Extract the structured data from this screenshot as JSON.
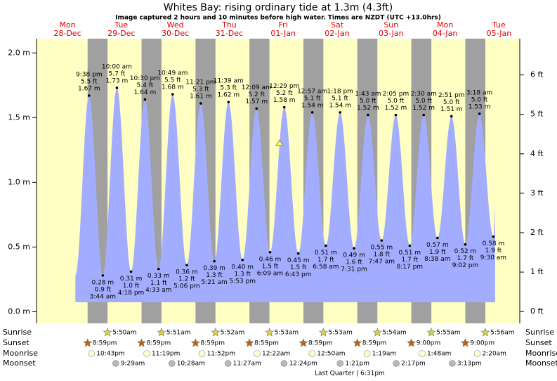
{
  "header": {
    "title": "Whites Bay: rising  ordinary tide at 1.3m (4.3ft)",
    "subtitle": "Image captured 2 hours and 10 minutes before high water. Times are NZDT (UTC +13.0hrs)"
  },
  "current_height_m": 1.3,
  "axes": {
    "ylim": [
      -0.09,
      2.11
    ],
    "yticks": [
      {
        "value": 0,
        "label": "0.0 m"
      },
      {
        "value": 0.5,
        "label": "0.5 m"
      },
      {
        "value": 1,
        "label": "1.0 m"
      },
      {
        "value": 1.5,
        "label": "1.5 m"
      },
      {
        "value": 2,
        "label": "2.0 m"
      }
    ],
    "y2lim": [
      -0.3,
      6.92
    ],
    "y2ticks": [
      {
        "value": 0,
        "label": "0 ft"
      },
      {
        "value": 1,
        "label": "1 ft"
      },
      {
        "value": 2,
        "label": "2 ft"
      },
      {
        "value": 3,
        "label": "3 ft"
      },
      {
        "value": 4,
        "label": "4 ft"
      },
      {
        "value": 5,
        "label": "5 ft"
      },
      {
        "value": 6,
        "label": "6 ft"
      }
    ]
  },
  "row_labels": {
    "sunrise": "Sunrise",
    "sunset": "Sunset",
    "moonrise": "Moonrise",
    "moonset": "Moonset"
  },
  "moon_phase": "Last Quarter | 6:31pm",
  "days": [
    {
      "weekday": "Mon",
      "date": "28-Dec",
      "sunrise": null,
      "sunset": "8:59pm",
      "moonrise": "10:43pm",
      "moonset": null,
      "tides": [
        {
          "time": "9:38 pm",
          "ft": "5.5 ft",
          "m": 1.67,
          "m_label": "1.67 m"
        }
      ]
    },
    {
      "weekday": "Tue",
      "date": "29-Dec",
      "sunrise": "5:50am",
      "sunset": "8:59pm",
      "moonrise": "11:19pm",
      "moonset": "9:29am",
      "tides": [
        {
          "time": "3:44 am",
          "ft": "0.9 ft",
          "m": 0.28,
          "m_label": "0.28 m"
        },
        {
          "time": "10:00 am",
          "ft": "5.7 ft",
          "m": 1.73,
          "m_label": "1.73 m"
        },
        {
          "time": "4:18 pm",
          "ft": "1.0 ft",
          "m": 0.31,
          "m_label": "0.31 m"
        },
        {
          "time": "10:30 pm",
          "ft": "5.4 ft",
          "m": 1.64,
          "m_label": "1.64 m"
        }
      ]
    },
    {
      "weekday": "Wed",
      "date": "30-Dec",
      "sunrise": "5:51am",
      "sunset": "8:59pm",
      "moonrise": "11:52pm",
      "moonset": "10:28am",
      "tides": [
        {
          "time": "4:33 am",
          "ft": "1.1 ft",
          "m": 0.33,
          "m_label": "0.33 m"
        },
        {
          "time": "10:49 am",
          "ft": "5.5 ft",
          "m": 1.68,
          "m_label": "1.68 m"
        },
        {
          "time": "5:06 pm",
          "ft": "1.2 ft",
          "m": 0.36,
          "m_label": "0.36 m"
        },
        {
          "time": "11:21 pm",
          "ft": "5.3 ft",
          "m": 1.61,
          "m_label": "1.61 m"
        }
      ]
    },
    {
      "weekday": "Thu",
      "date": "31-Dec",
      "sunrise": "5:52am",
      "sunset": "8:59pm",
      "moonrise": null,
      "moonset": "11:27am",
      "tides": [
        {
          "time": "5:21 am",
          "ft": "1.3 ft",
          "m": 0.39,
          "m_label": "0.39 m"
        },
        {
          "time": "11:39 am",
          "ft": "5.3 ft",
          "m": 1.62,
          "m_label": "1.62 m"
        },
        {
          "time": "5:53 pm",
          "ft": "1.3 ft",
          "m": 0.4,
          "m_label": "0.40 m"
        }
      ]
    },
    {
      "weekday": "Fri",
      "date": "01-Jan",
      "sunrise": "5:53am",
      "sunset": "8:59pm",
      "moonrise": "12:22am",
      "moonset": "12:24pm",
      "tides": [
        {
          "time": "12:09 am",
          "ft": "5.2 ft",
          "m": 1.57,
          "m_label": "1.57 m"
        },
        {
          "time": "6:09 am",
          "ft": "1.5 ft",
          "m": 0.46,
          "m_label": "0.46 m"
        },
        {
          "time": "12:29 pm",
          "ft": "5.2 ft",
          "m": 1.58,
          "m_label": "1.58 m"
        },
        {
          "time": "6:43 pm",
          "ft": "1.5 ft",
          "m": 0.45,
          "m_label": "0.45 m"
        }
      ]
    },
    {
      "weekday": "Sat",
      "date": "02-Jan",
      "sunrise": "5:53am",
      "sunset": "8:59pm",
      "moonrise": "12:50am",
      "moonset": "1:21pm",
      "tides": [
        {
          "time": "12:57 am",
          "ft": "5.1 ft",
          "m": 1.54,
          "m_label": "1.54 m"
        },
        {
          "time": "6:58 am",
          "ft": "1.7 ft",
          "m": 0.51,
          "m_label": "0.51 m"
        },
        {
          "time": "1:18 pm",
          "ft": "5.1 ft",
          "m": 1.54,
          "m_label": "1.54 m"
        },
        {
          "time": "7:31 pm",
          "ft": "1.6 ft",
          "m": 0.49,
          "m_label": "0.49 m"
        }
      ]
    },
    {
      "weekday": "Sun",
      "date": "03-Jan",
      "sunrise": "5:54am",
      "sunset": "9:00pm",
      "moonrise": "1:19am",
      "moonset": "2:17pm",
      "tides": [
        {
          "time": "1:43 am",
          "ft": "5.0 ft",
          "m": 1.52,
          "m_label": "1.52 m"
        },
        {
          "time": "7:47 am",
          "ft": "1.8 ft",
          "m": 0.55,
          "m_label": "0.55 m"
        },
        {
          "time": "2:05 pm",
          "ft": "5.0 ft",
          "m": 1.52,
          "m_label": "1.52 m"
        },
        {
          "time": "8:17 pm",
          "ft": "1.7 ft",
          "m": 0.51,
          "m_label": "0.51 m"
        }
      ]
    },
    {
      "weekday": "Mon",
      "date": "04-Jan",
      "sunrise": "5:55am",
      "sunset": "9:00pm",
      "moonrise": "1:48am",
      "moonset": "3:13pm",
      "tides": [
        {
          "time": "2:30 am",
          "ft": "5.0 ft",
          "m": 1.52,
          "m_label": "1.52 m"
        },
        {
          "time": "8:38 am",
          "ft": "1.9 ft",
          "m": 0.57,
          "m_label": "0.57 m"
        },
        {
          "time": "2:51 pm",
          "ft": "5.0 ft",
          "m": 1.51,
          "m_label": "1.51 m"
        },
        {
          "time": "9:02 pm",
          "ft": "1.7 ft",
          "m": 0.52,
          "m_label": "0.52 m"
        }
      ]
    },
    {
      "weekday": "Tue",
      "date": "05-Jan",
      "sunrise": "5:56am",
      "sunset": null,
      "moonrise": "2:20am",
      "moonset": null,
      "tides": [
        {
          "time": "3:18 am",
          "ft": "5.0 ft",
          "m": 1.53,
          "m_label": "1.53 m"
        },
        {
          "time": "9:30 am",
          "ft": "1.9 ft",
          "m": 0.58,
          "m_label": "0.58 m"
        }
      ]
    }
  ]
}
